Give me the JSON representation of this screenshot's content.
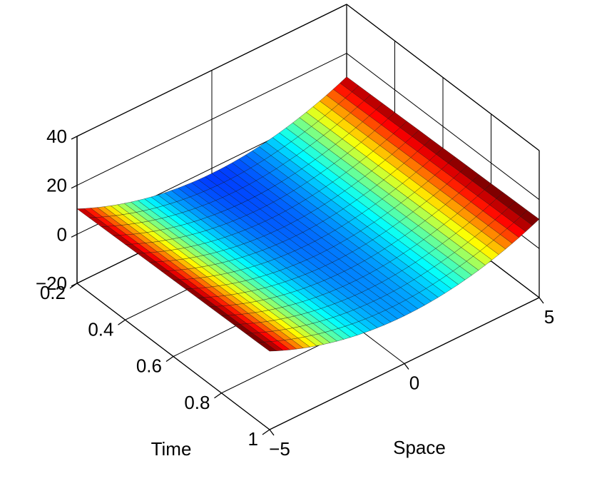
{
  "chart_data": {
    "type": "surface",
    "title": "",
    "xlabel": "Space",
    "ylabel": "Time",
    "zlabel": "",
    "xlim": [
      -5,
      5
    ],
    "ylim": [
      0.2,
      1
    ],
    "zlim": [
      -20,
      40
    ],
    "x_ticks": [
      "−5",
      "0",
      "5"
    ],
    "y_ticks": [
      "0.2",
      "0.4",
      "0.6",
      "0.8",
      "1"
    ],
    "z_ticks": [
      "−20",
      "0",
      "20",
      "40"
    ],
    "x_tick_values": [
      -5,
      0,
      5
    ],
    "y_tick_values": [
      0.2,
      0.4,
      0.6,
      0.8,
      1
    ],
    "z_tick_values": [
      -20,
      0,
      20,
      40
    ],
    "function": "u(x,t) = x^2 / 2 + 2t - 2.5",
    "x": [
      -5,
      -4.75,
      -4.5,
      -4.25,
      -4,
      -3.75,
      -3.5,
      -3.25,
      -3,
      -2.75,
      -2.5,
      -2.25,
      -2,
      -1.75,
      -1.5,
      -1.25,
      -1,
      -0.75,
      -0.5,
      -0.25,
      0,
      0.25,
      0.5,
      0.75,
      1,
      1.25,
      1.5,
      1.75,
      2,
      2.25,
      2.5,
      2.75,
      3,
      3.25,
      3.5,
      3.75,
      4,
      4.25,
      4.5,
      4.75,
      5
    ],
    "t": [
      0.2,
      0.25,
      0.3,
      0.35,
      0.4,
      0.45,
      0.5,
      0.55,
      0.6,
      0.65,
      0.7,
      0.75,
      0.8,
      0.85,
      0.9,
      0.95,
      1
    ],
    "colormap": "jet",
    "grid": true
  }
}
